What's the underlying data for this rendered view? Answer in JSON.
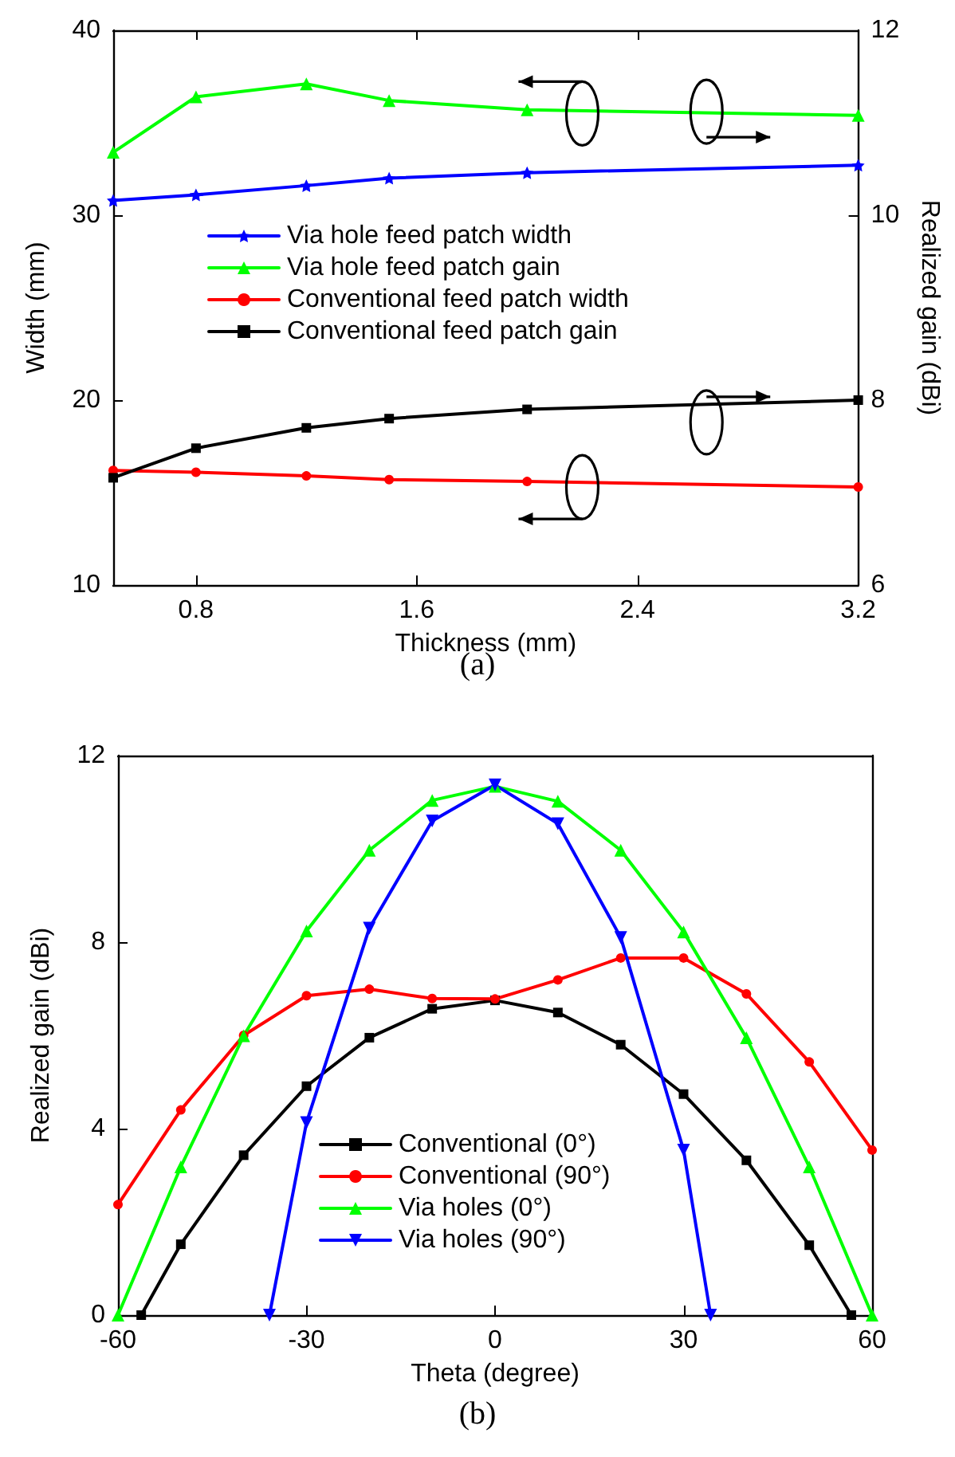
{
  "chart_data": [
    {
      "type": "line",
      "title": "(a)",
      "xlabel": "Thickness (mm)",
      "ylabel": "Width (mm)",
      "y2label": "Realized gain (dBi)",
      "x": [
        0.5,
        0.8,
        1.2,
        1.5,
        2.0,
        3.2
      ],
      "xlim": [
        0.5,
        3.2
      ],
      "xticks": [
        0.8,
        1.6,
        2.4,
        3.2
      ],
      "ylim": [
        10,
        40
      ],
      "yticks": [
        10,
        20,
        30,
        40
      ],
      "y2lim": [
        6,
        12
      ],
      "y2ticks": [
        6,
        8,
        10,
        12
      ],
      "legend": "center left",
      "series": [
        {
          "name": "Via hole feed patch width",
          "color": "#0000ff",
          "marker": "star",
          "values": [
            30.8,
            31.1,
            31.6,
            32.0,
            32.3,
            32.7
          ]
        },
        {
          "name": "Via hole feed patch gain",
          "color": "#00ff00",
          "marker": "triangle",
          "axis": "y2",
          "values": [
            10.68,
            11.28,
            11.42,
            11.24,
            11.14,
            11.08
          ]
        },
        {
          "name": "Conventional feed patch width",
          "color": "#ff0000",
          "marker": "circle",
          "values": [
            16.2,
            16.1,
            15.9,
            15.7,
            15.6,
            15.3
          ]
        },
        {
          "name": "Conventional feed patch gain",
          "color": "#000000",
          "marker": "square",
          "axis": "y2",
          "values": [
            7.16,
            7.48,
            7.7,
            7.8,
            7.9,
            8.0
          ]
        }
      ]
    },
    {
      "type": "line",
      "title": "(b)",
      "xlabel": "Theta (degree)",
      "ylabel": "Realized gain (dBi)",
      "xlim": [
        -60,
        60
      ],
      "xticks": [
        -60,
        -30,
        0,
        30,
        60
      ],
      "ylim": [
        0,
        12
      ],
      "yticks": [
        0,
        4,
        8,
        12
      ],
      "legend": "bottom",
      "series": [
        {
          "name": "Conventional (0°)",
          "color": "#000000",
          "marker": "square",
          "x": [
            -56.3,
            -50,
            -40,
            -30,
            -20,
            -10,
            0,
            10,
            20,
            30,
            40,
            50,
            56.7
          ],
          "values": [
            0,
            1.52,
            3.43,
            4.91,
            5.95,
            6.57,
            6.75,
            6.49,
            5.8,
            4.74,
            3.32,
            1.5,
            0
          ]
        },
        {
          "name": "Conventional (90°)",
          "color": "#ff0000",
          "marker": "circle",
          "x": [
            -60,
            -50,
            -40,
            -30,
            -20,
            -10,
            0,
            10,
            20,
            30,
            40,
            50,
            60
          ],
          "values": [
            2.37,
            4.4,
            6.0,
            6.85,
            6.99,
            6.79,
            6.78,
            7.19,
            7.66,
            7.66,
            6.89,
            5.43,
            3.54
          ]
        },
        {
          "name": "Via holes (0°)",
          "color": "#00ff00",
          "marker": "triangle",
          "x": [
            -60,
            -50,
            -40,
            -30,
            -20,
            -10,
            0,
            10,
            20,
            30,
            40,
            50,
            60
          ],
          "values": [
            0,
            3.18,
            5.99,
            8.24,
            9.97,
            11.04,
            11.34,
            11.02,
            9.97,
            8.22,
            5.95,
            3.18,
            0
          ]
        },
        {
          "name": "Via holes (90°)",
          "color": "#0000ff",
          "marker": "triangle-down",
          "x": [
            -35.9,
            -30,
            -20,
            -10,
            0,
            10,
            20,
            30,
            34.3
          ],
          "values": [
            0,
            4.13,
            8.3,
            10.6,
            11.37,
            10.54,
            8.1,
            3.54,
            0
          ]
        }
      ]
    }
  ]
}
